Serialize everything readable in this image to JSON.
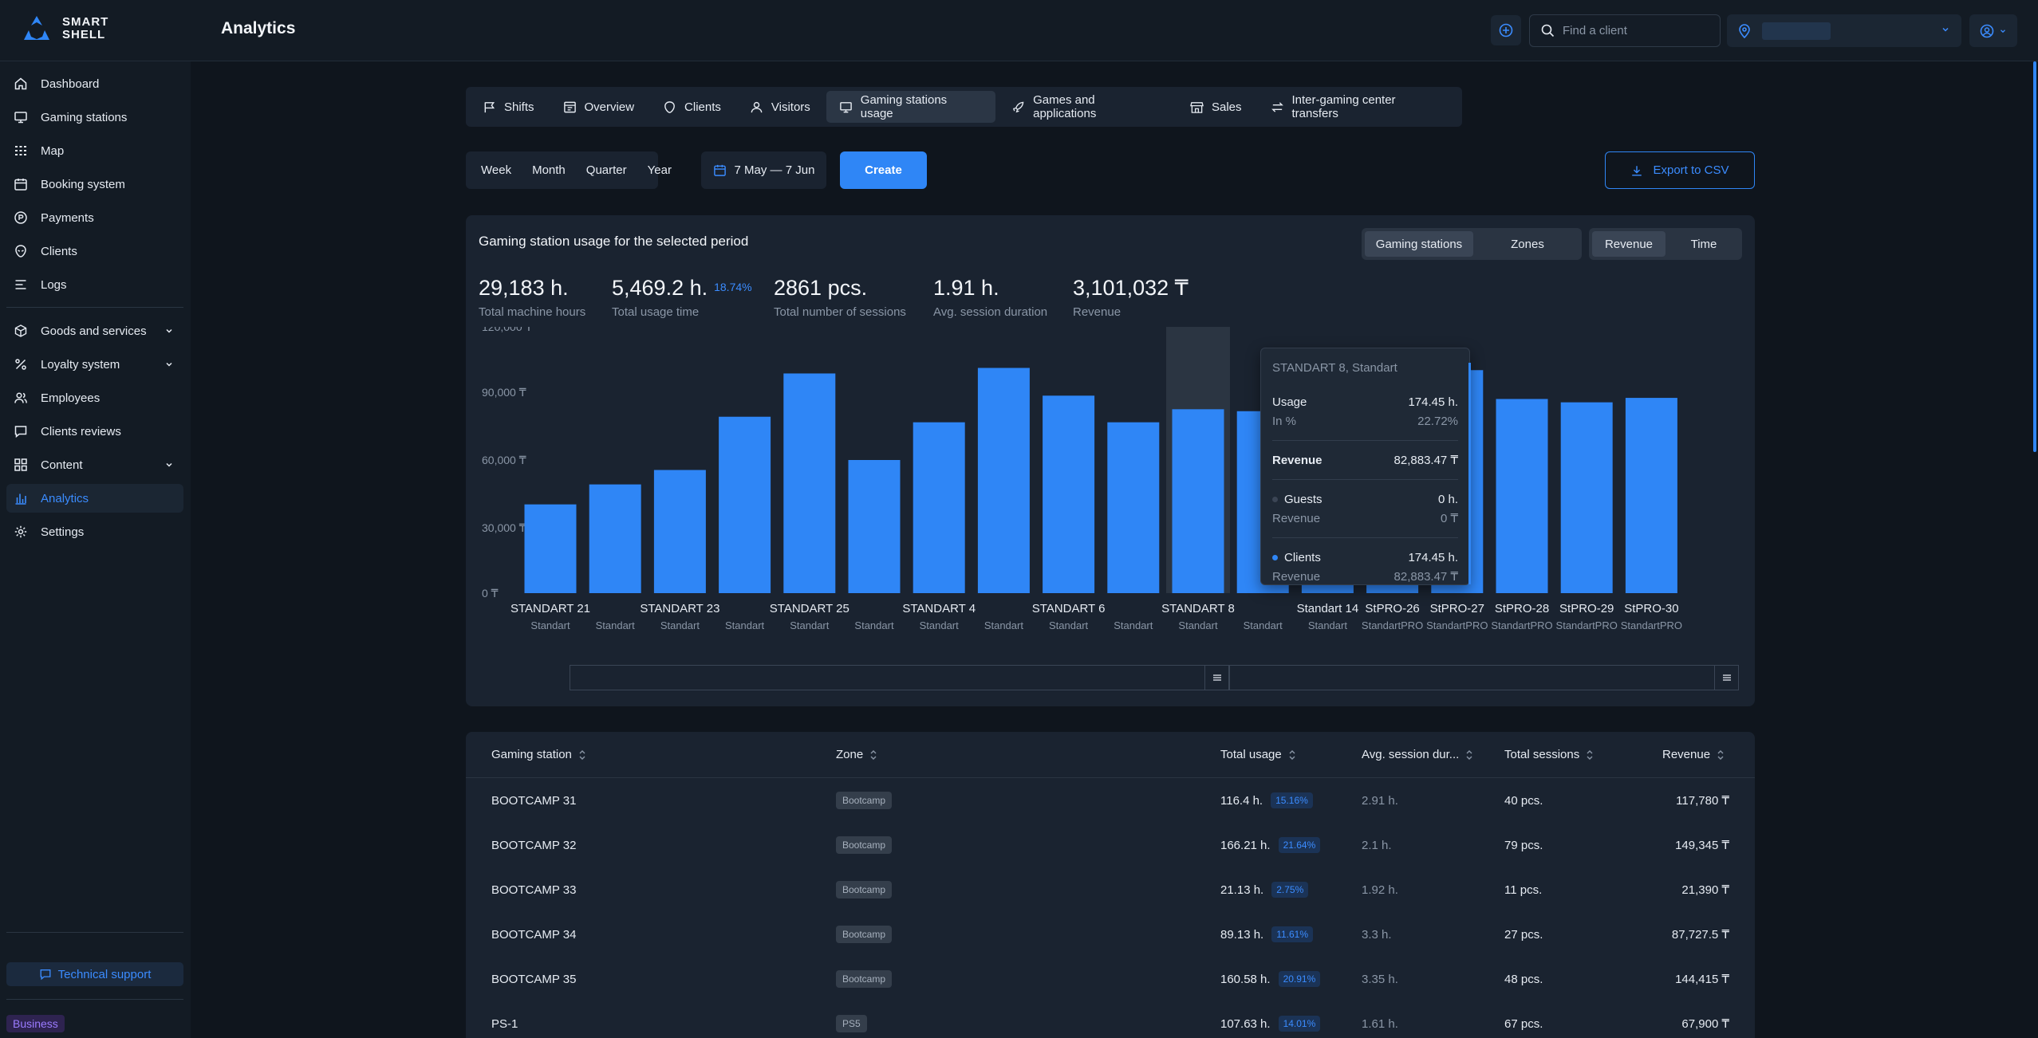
{
  "brand": {
    "name_line1": "SMART",
    "name_line2": "SHELL"
  },
  "header": {
    "title": "Analytics",
    "search_placeholder": "Find a client"
  },
  "sidebar": {
    "items": [
      {
        "label": "Dashboard",
        "icon": "home-icon"
      },
      {
        "label": "Gaming stations",
        "icon": "monitor-icon"
      },
      {
        "label": "Map",
        "icon": "grid-dots-icon"
      },
      {
        "label": "Booking system",
        "icon": "calendar-icon"
      },
      {
        "label": "Payments",
        "icon": "coin-icon"
      },
      {
        "label": "Clients",
        "icon": "alien-icon"
      },
      {
        "label": "Logs",
        "icon": "list-icon"
      },
      {
        "label": "Goods and services",
        "icon": "box-icon"
      },
      {
        "label": "Loyalty system",
        "icon": "percent-icon"
      },
      {
        "label": "Employees",
        "icon": "users-icon"
      },
      {
        "label": "Clients reviews",
        "icon": "message-icon"
      },
      {
        "label": "Content",
        "icon": "layout-icon"
      },
      {
        "label": "Analytics",
        "icon": "chart-icon"
      },
      {
        "label": "Settings",
        "icon": "gear-icon"
      }
    ],
    "support_label": "Technical support",
    "plan_label": "Business"
  },
  "tabs": [
    {
      "label": "Shifts"
    },
    {
      "label": "Overview"
    },
    {
      "label": "Clients"
    },
    {
      "label": "Visitors"
    },
    {
      "label": "Gaming stations usage"
    },
    {
      "label": "Games and applications"
    },
    {
      "label": "Sales"
    },
    {
      "label": "Inter-gaming center transfers"
    }
  ],
  "periods": [
    "Week",
    "Month",
    "Quarter",
    "Year"
  ],
  "date_range": "7 May — 7 Jun",
  "create_label": "Create",
  "export_label": "Export to CSV",
  "card": {
    "title": "Gaming station usage for the selected period",
    "seg1": [
      "Gaming stations",
      "Zones"
    ],
    "seg2": [
      "Revenue",
      "Time"
    ]
  },
  "stats": [
    {
      "value": "29,183 h.",
      "pct": "",
      "label": "Total machine hours"
    },
    {
      "value": "5,469.2 h.",
      "pct": "18.74%",
      "label": "Total usage time"
    },
    {
      "value": "2861 pcs.",
      "pct": "",
      "label": "Total number of sessions"
    },
    {
      "value": "1.91 h.",
      "pct": "",
      "label": "Avg. session duration"
    },
    {
      "value": "3,101,032 ₸",
      "pct": "",
      "label": "Revenue"
    }
  ],
  "chart_data": {
    "type": "bar",
    "y_ticks": [
      "0 ₸",
      "30,000 ₸",
      "60,000 ₸",
      "90,000 ₸",
      "120,000 ₸"
    ],
    "ylim": [
      0,
      120000
    ],
    "bar_color": "#2f86f6",
    "bars": [
      {
        "zone": "Standart",
        "label": "STANDART 21",
        "value": 40000
      },
      {
        "zone": "Standart",
        "label": "",
        "value": 49000
      },
      {
        "zone": "Standart",
        "label": "STANDART 23",
        "value": 55500
      },
      {
        "zone": "Standart",
        "label": "",
        "value": 79500
      },
      {
        "zone": "Standart",
        "label": "STANDART 25",
        "value": 99000
      },
      {
        "zone": "Standart",
        "label": "",
        "value": 60000
      },
      {
        "zone": "Standart",
        "label": "STANDART 4",
        "value": 77000
      },
      {
        "zone": "Standart",
        "label": "",
        "value": 101500
      },
      {
        "zone": "Standart",
        "label": "STANDART 6",
        "value": 89000
      },
      {
        "zone": "Standart",
        "label": "",
        "value": 77000
      },
      {
        "zone": "Standart",
        "label": "STANDART 8",
        "value": 82883.47
      },
      {
        "zone": "Standart",
        "label": "",
        "value": 82000
      },
      {
        "zone": "Standart",
        "label": "Standart 14",
        "value": 78000
      },
      {
        "zone": "StandartPRO",
        "label": "StPRO-26",
        "value": 80000
      },
      {
        "zone": "StandartPRO",
        "label": "StPRO-27",
        "value": 100500
      },
      {
        "zone": "StandartPRO",
        "label": "StPRO-28",
        "value": 87500
      },
      {
        "zone": "StandartPRO",
        "label": "StPRO-29",
        "value": 86000
      },
      {
        "zone": "StandartPRO",
        "label": "StPRO-30",
        "value": 88000
      }
    ]
  },
  "tooltip": {
    "title": "STANDART 8, Standart",
    "usage_label": "Usage",
    "usage_value": "174.45 h.",
    "pct_label": "In %",
    "pct_value": "22.72%",
    "revenue_label": "Revenue",
    "revenue_value": "82,883.47 ₸",
    "guests_label": "Guests",
    "guests_value": "0 h.",
    "guests_rev_label": "Revenue",
    "guests_rev_value": "0 ₸",
    "clients_label": "Clients",
    "clients_value": "174.45 h.",
    "clients_rev_label": "Revenue",
    "clients_rev_value": "82,883.47 ₸"
  },
  "table": {
    "headers": [
      "Gaming station",
      "Zone",
      "Total usage",
      "Avg. session dur...",
      "Total sessions",
      "Revenue"
    ],
    "rows": [
      {
        "station": "BOOTCAMP 31",
        "zone": "Bootcamp",
        "usage": "116.4 h.",
        "pct": "15.16%",
        "avg": "2.91 h.",
        "sessions": "40 pcs.",
        "revenue": "117,780 ₸"
      },
      {
        "station": "BOOTCAMP 32",
        "zone": "Bootcamp",
        "usage": "166.21 h.",
        "pct": "21.64%",
        "avg": "2.1 h.",
        "sessions": "79 pcs.",
        "revenue": "149,345 ₸"
      },
      {
        "station": "BOOTCAMP 33",
        "zone": "Bootcamp",
        "usage": "21.13 h.",
        "pct": "2.75%",
        "avg": "1.92 h.",
        "sessions": "11 pcs.",
        "revenue": "21,390 ₸"
      },
      {
        "station": "BOOTCAMP 34",
        "zone": "Bootcamp",
        "usage": "89.13 h.",
        "pct": "11.61%",
        "avg": "3.3 h.",
        "sessions": "27 pcs.",
        "revenue": "87,727.5 ₸"
      },
      {
        "station": "BOOTCAMP 35",
        "zone": "Bootcamp",
        "usage": "160.58 h.",
        "pct": "20.91%",
        "avg": "3.35 h.",
        "sessions": "48 pcs.",
        "revenue": "144,415 ₸"
      },
      {
        "station": "PS-1",
        "zone": "PS5",
        "usage": "107.63 h.",
        "pct": "14.01%",
        "avg": "1.61 h.",
        "sessions": "67 pcs.",
        "revenue": "67,900 ₸"
      }
    ]
  }
}
